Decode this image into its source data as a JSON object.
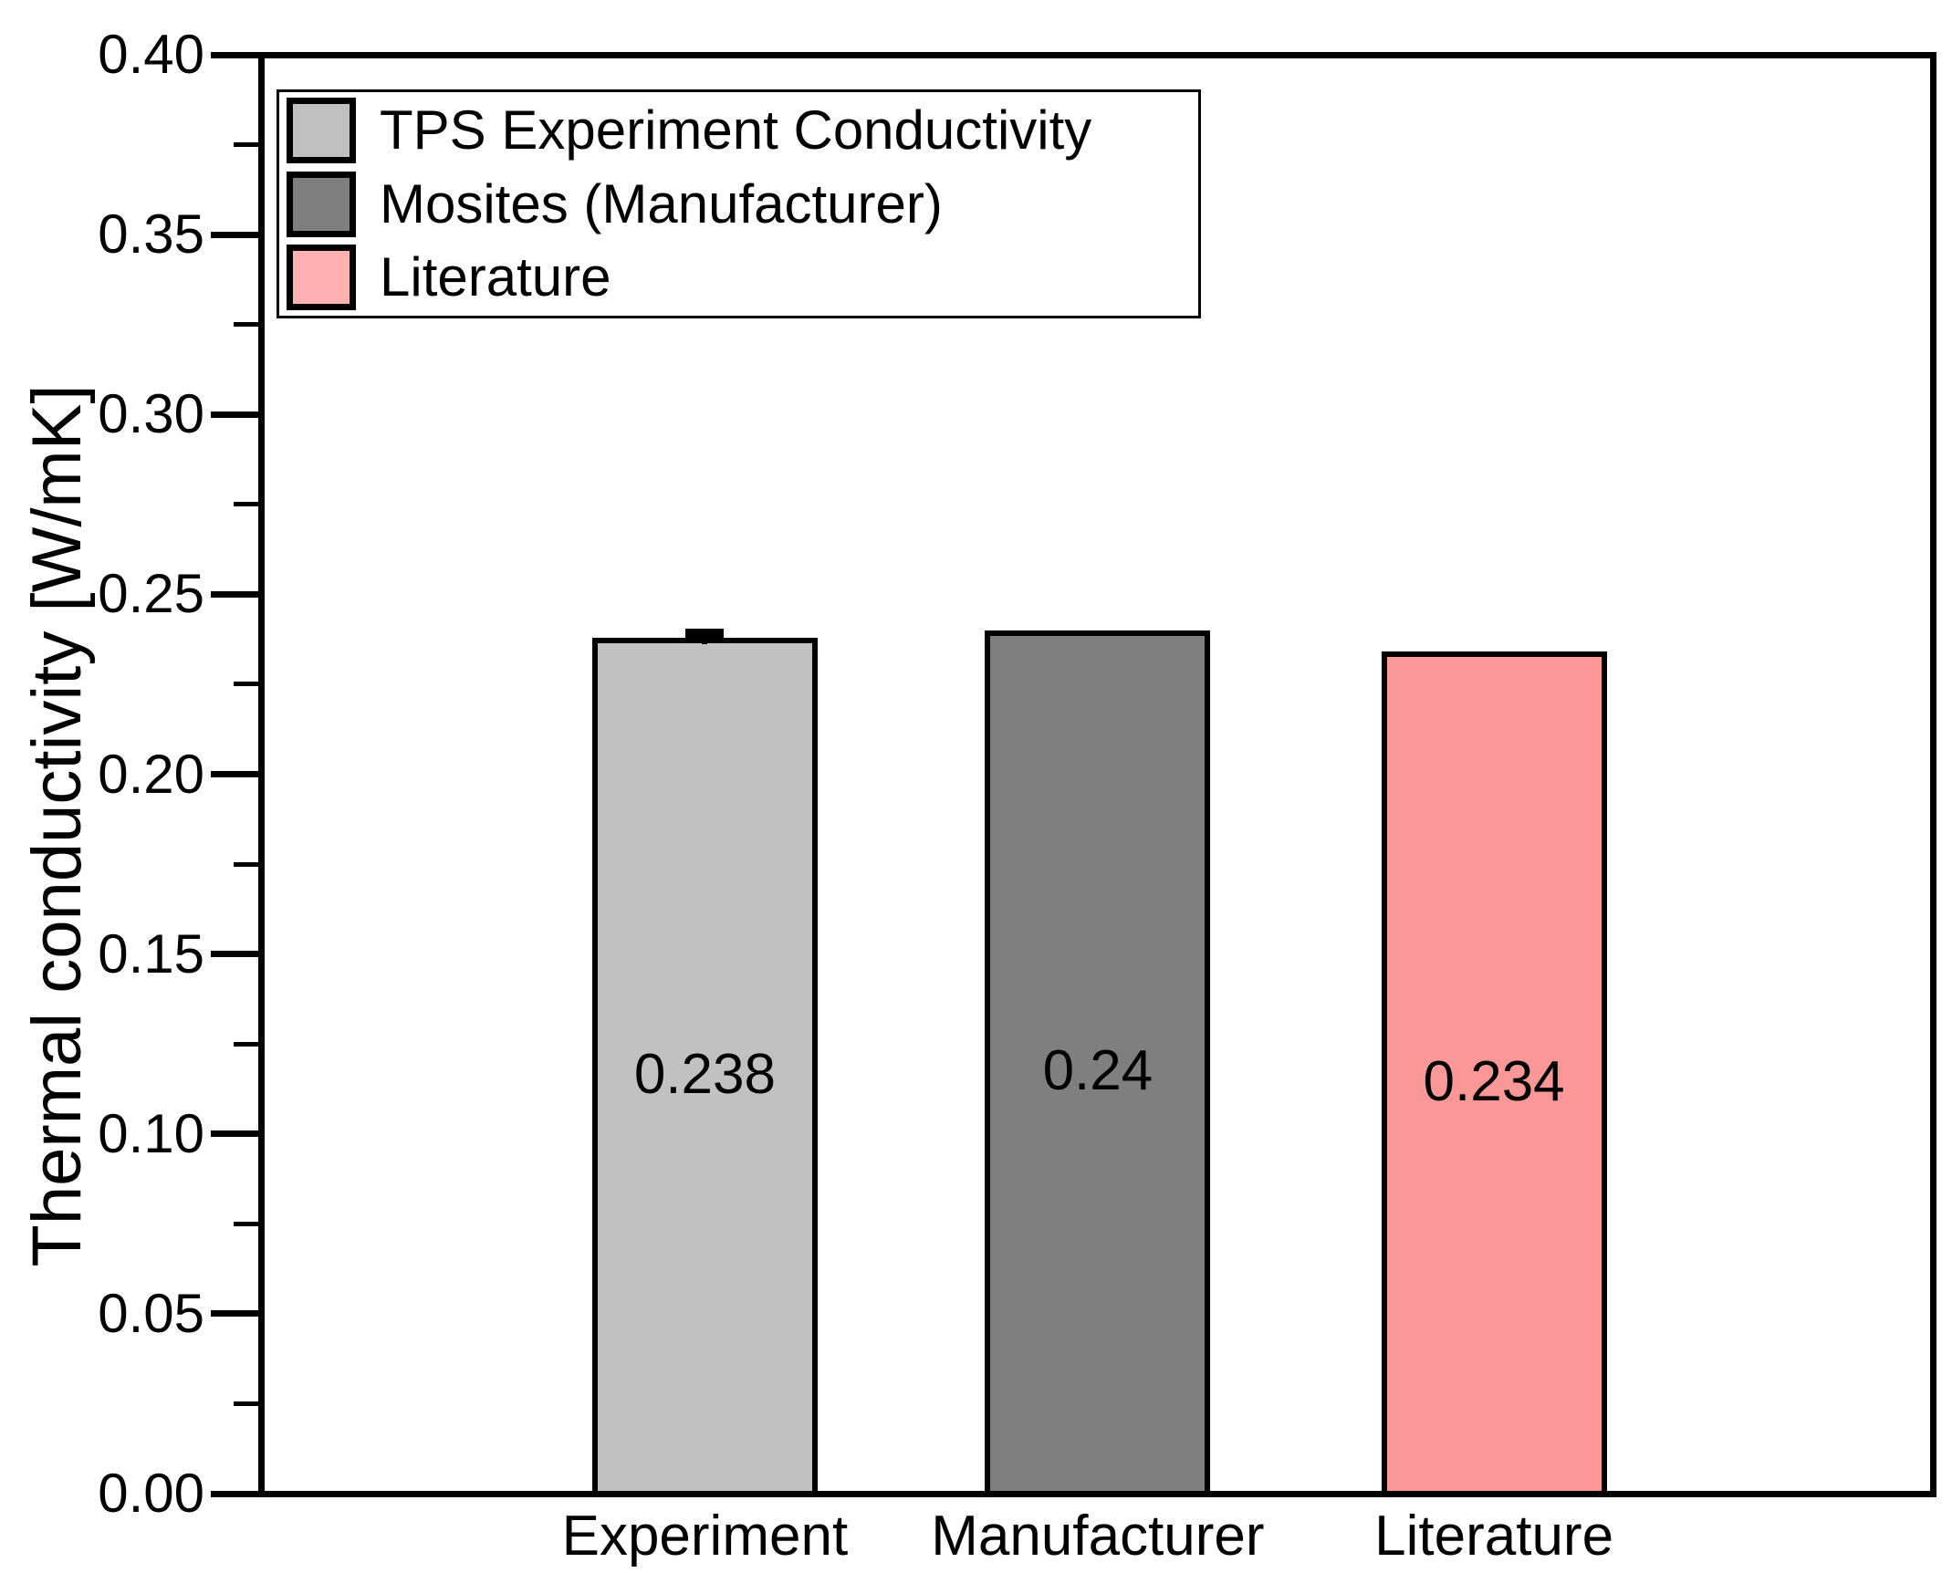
{
  "chart_data": {
    "type": "bar",
    "title": "",
    "xlabel": "",
    "ylabel": "Thermal conductivity [W/mK]",
    "categories": [
      "Experiment",
      "Manufacturer",
      "Literature"
    ],
    "values": [
      0.238,
      0.24,
      0.234
    ],
    "value_labels": [
      "0.238",
      "0.24",
      "0.234"
    ],
    "errors": [
      0.0005,
      null,
      null
    ],
    "bar_colors": [
      "#c1c1c1",
      "#7f7f7f",
      "#fa9898"
    ],
    "bar_border_color": "#000000",
    "ylim": [
      0.0,
      0.4
    ],
    "ytick_step": 0.05,
    "ytick_minor_step": 0.025,
    "ytick_labels": [
      "0.00",
      "0.05",
      "0.10",
      "0.15",
      "0.20",
      "0.25",
      "0.30",
      "0.35",
      "0.40"
    ],
    "grid": "off",
    "legend_position": "top-left"
  },
  "legend": {
    "items": [
      {
        "label": "TPS Experiment Conductivity",
        "color": "#c0c0c0"
      },
      {
        "label": "Mosites (Manufacturer)",
        "color": "#7f7f7f"
      },
      {
        "label": "Literature",
        "color": "#ffb0b0"
      }
    ]
  }
}
